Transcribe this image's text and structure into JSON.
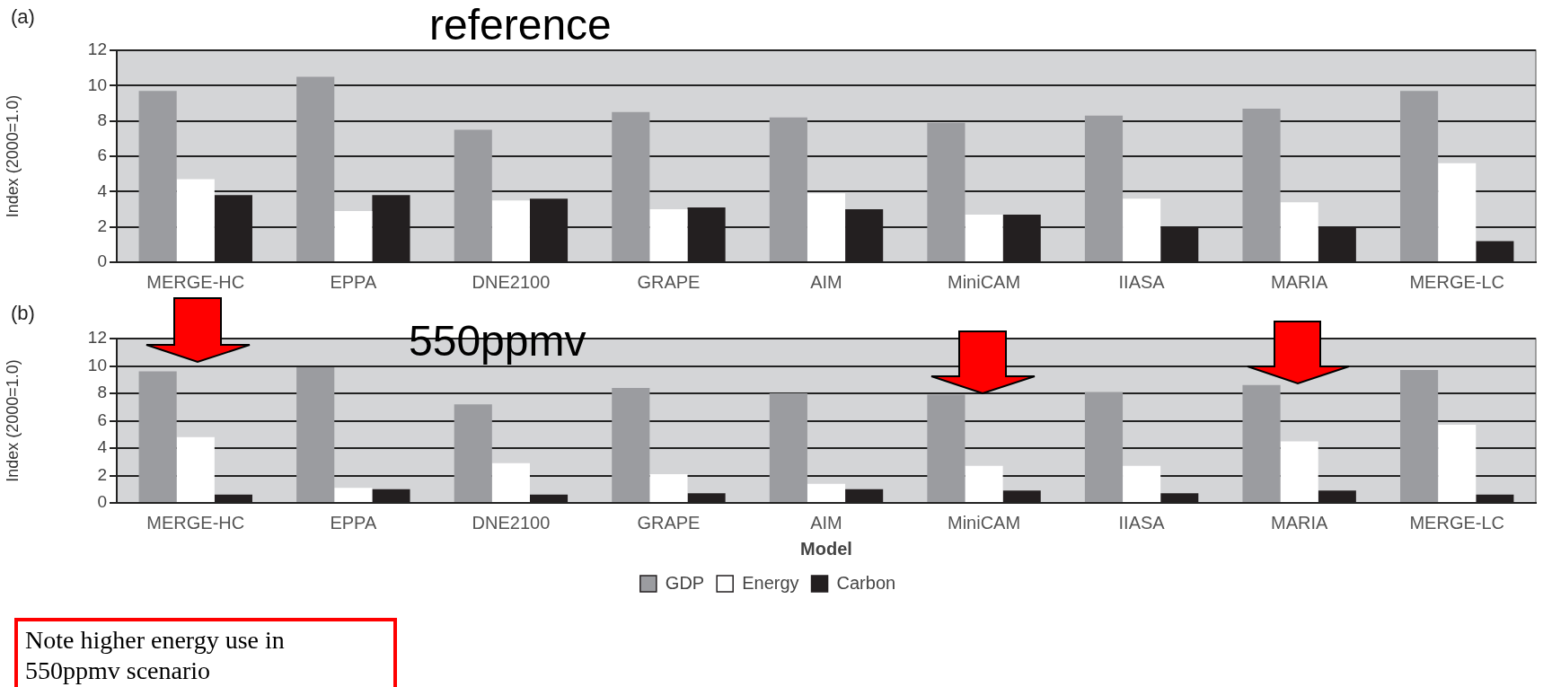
{
  "chart_data": [
    {
      "type": "bar",
      "title": "(a)",
      "subtitle": "reference",
      "ylabel": "Index (2000=1.0)",
      "categories": [
        "MERGE-HC",
        "EPPA",
        "DNE2100",
        "GRAPE",
        "AIM",
        "MiniCAM",
        "IIASA",
        "MARIA",
        "MERGE-LC"
      ],
      "series": [
        {
          "color": "#9b9ca0",
          "values": [
            9.7,
            10.5,
            7.5,
            8.5,
            8.2,
            7.9,
            8.3,
            8.7,
            9.7
          ]
        },
        {
          "color": "#ffffff",
          "values": [
            4.7,
            2.9,
            3.5,
            3.0,
            3.9,
            2.7,
            3.6,
            3.4,
            5.6
          ]
        },
        {
          "color": "#231f20",
          "values": [
            3.8,
            3.8,
            3.6,
            3.1,
            3.0,
            2.7,
            2.0,
            2.0,
            1.2
          ]
        }
      ],
      "ylim": [
        0,
        12
      ],
      "yticks": [
        0,
        2,
        4,
        6,
        8,
        10,
        12
      ],
      "grid": "y",
      "legend": false
    },
    {
      "type": "bar",
      "title": "(b)",
      "subtitle": "550ppmv",
      "ylabel": "Index (2000=1.0)",
      "xlabel": "Model",
      "categories": [
        "MERGE-HC",
        "EPPA",
        "DNE2100",
        "GRAPE",
        "AIM",
        "MiniCAM",
        "IIASA",
        "MARIA",
        "MERGE-LC"
      ],
      "series": [
        {
          "name": "GDP",
          "color": "#9b9ca0",
          "values": [
            9.6,
            9.9,
            7.2,
            8.4,
            8.0,
            7.9,
            8.1,
            8.6,
            9.7
          ]
        },
        {
          "name": "Energy",
          "color": "#ffffff",
          "values": [
            4.8,
            1.1,
            2.9,
            2.1,
            1.4,
            2.7,
            2.7,
            4.5,
            5.7
          ]
        },
        {
          "name": "Carbon",
          "color": "#231f20",
          "values": [
            0.6,
            1.0,
            0.6,
            0.7,
            1.0,
            0.9,
            0.7,
            0.9,
            0.6
          ]
        }
      ],
      "ylim": [
        0,
        12
      ],
      "yticks": [
        0,
        2,
        4,
        6,
        8,
        10,
        12
      ],
      "grid": "y",
      "legend": "bottom",
      "annotations": [
        "Note higher energy use in 550ppmv scenario"
      ]
    }
  ]
}
